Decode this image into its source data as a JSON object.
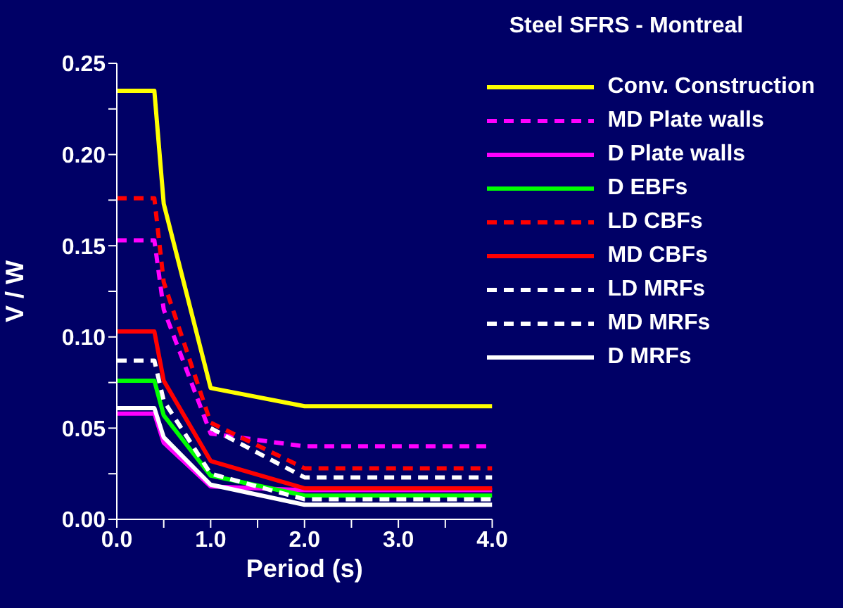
{
  "chart_data": {
    "type": "line",
    "title": "Steel SFRS - Montreal",
    "xlabel": "Period (s)",
    "ylabel": "V / W",
    "x": [
      0,
      0.4,
      0.5,
      1.0,
      2.0,
      4.0
    ],
    "xlim": [
      0,
      4
    ],
    "xticks": [
      {
        "value": 0,
        "label": "0.0"
      },
      {
        "value": 0.5,
        "label": null
      },
      {
        "value": 1,
        "label": "1.0"
      },
      {
        "value": 1.5,
        "label": null
      },
      {
        "value": 2,
        "label": "2.0"
      },
      {
        "value": 2.5,
        "label": null
      },
      {
        "value": 3,
        "label": "3.0"
      },
      {
        "value": 3.5,
        "label": null
      },
      {
        "value": 4,
        "label": "4.0"
      }
    ],
    "ylim": [
      0,
      0.25
    ],
    "yticks": [
      {
        "value": 0,
        "label": "0.00"
      },
      {
        "value": 0.025,
        "label": null
      },
      {
        "value": 0.05,
        "label": "0.05"
      },
      {
        "value": 0.075,
        "label": null
      },
      {
        "value": 0.1,
        "label": "0.10"
      },
      {
        "value": 0.125,
        "label": null
      },
      {
        "value": 0.15,
        "label": "0.15"
      },
      {
        "value": 0.175,
        "label": null
      },
      {
        "value": 0.2,
        "label": "0.20"
      },
      {
        "value": 0.225,
        "label": null
      },
      {
        "value": 0.25,
        "label": "0.25"
      }
    ],
    "grid": false,
    "legend": "top right",
    "marker": "none",
    "series": [
      {
        "name": "Conv. Construction",
        "color": "#ffff00",
        "line_style": "solid",
        "values": [
          0.235,
          0.235,
          0.173,
          0.072,
          0.062,
          0.062
        ]
      },
      {
        "name": "MD Plate walls",
        "color": "#ff00ff",
        "line_style": "dashed",
        "values": [
          0.153,
          0.153,
          0.115,
          0.047,
          0.04,
          0.04
        ]
      },
      {
        "name": "D Plate walls",
        "color": "#ff00ff",
        "line_style": "solid",
        "values": [
          0.058,
          0.058,
          0.042,
          0.018,
          0.016,
          0.016
        ]
      },
      {
        "name": "D EBFs",
        "color": "#00ff00",
        "line_style": "solid",
        "values": [
          0.076,
          0.076,
          0.057,
          0.024,
          0.013,
          0.013
        ]
      },
      {
        "name": "LD CBFs",
        "color": "#ff0000",
        "line_style": "dashed",
        "values": [
          0.176,
          0.176,
          0.13,
          0.053,
          0.028,
          0.028
        ]
      },
      {
        "name": "MD CBFs",
        "color": "#ff0000",
        "line_style": "solid",
        "values": [
          0.103,
          0.103,
          0.076,
          0.032,
          0.017,
          0.017
        ]
      },
      {
        "name": "LD MRFs",
        "color": "#ffffff",
        "line_style": "dashed",
        "values": [
          null,
          null,
          null,
          0.05,
          0.023,
          0.023
        ]
      },
      {
        "name": "MD MRFs",
        "color": "#ffffff",
        "line_style": "dashed",
        "values": [
          0.087,
          0.087,
          0.065,
          0.025,
          0.011,
          0.011
        ]
      },
      {
        "name": "D MRFs",
        "color": "#ffffff",
        "line_style": "solid",
        "values": [
          0.061,
          0.061,
          0.045,
          0.019,
          0.008,
          0.008
        ]
      }
    ]
  }
}
